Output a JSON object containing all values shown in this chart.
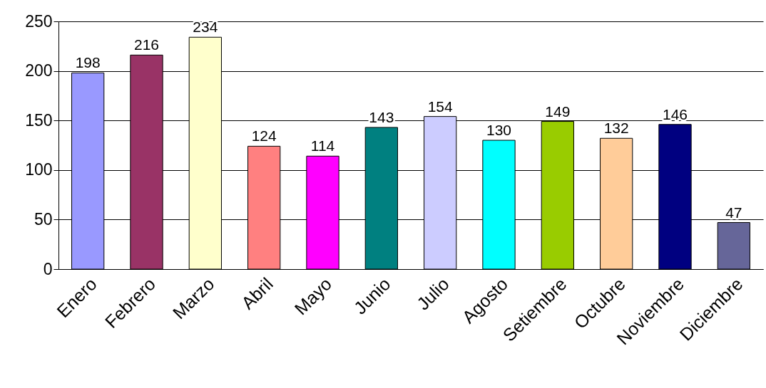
{
  "chart_data": {
    "type": "bar",
    "categories": [
      "Enero",
      "Febrero",
      "Marzo",
      "Abril",
      "Mayo",
      "Junio",
      "Julio",
      "Agosto",
      "Setiembre",
      "Octubre",
      "Noviembre",
      "Diciembre"
    ],
    "values": [
      198,
      216,
      234,
      124,
      114,
      143,
      154,
      130,
      149,
      132,
      146,
      47
    ],
    "colors": [
      "#9999ff",
      "#993366",
      "#ffffcc",
      "#ff8080",
      "#ff00ff",
      "#008080",
      "#ccccff",
      "#00ffff",
      "#99cc00",
      "#ffcc99",
      "#000080",
      "#666699"
    ],
    "ylim": [
      0,
      250
    ],
    "yticks": [
      0,
      50,
      100,
      150,
      200,
      250
    ],
    "grid": "y",
    "data_labels": true
  }
}
